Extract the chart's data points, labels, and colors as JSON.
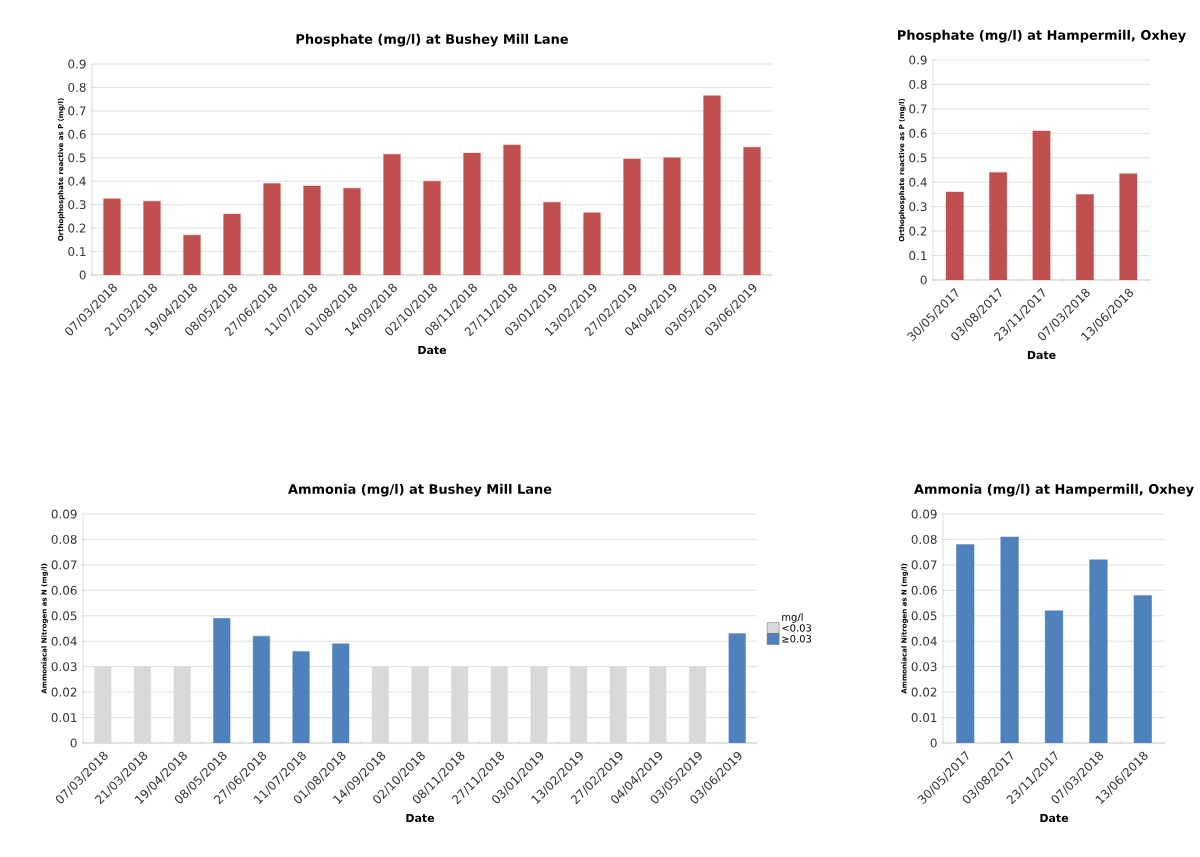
{
  "chart_data": [
    {
      "type": "bar",
      "title": "Phosphate (mg/l) at Bushey Mill Lane",
      "xlabel": "Date",
      "ylabel": "Orthophosphate reactive as P (mg/l)",
      "categories": [
        "07/03/2018",
        "21/03/2018",
        "19/04/2018",
        "08/05/2018",
        "27/06/2018",
        "11/07/2018",
        "01/08/2018",
        "14/09/2018",
        "02/10/2018",
        "08/11/2018",
        "27/11/2018",
        "03/01/2019",
        "13/02/2019",
        "27/02/2019",
        "04/04/2019",
        "03/05/2019",
        "03/06/2019"
      ],
      "series": [
        {
          "color": "#c0504d",
          "values": [
            0.325,
            0.315,
            0.17,
            0.26,
            0.39,
            0.38,
            0.37,
            0.515,
            0.4,
            0.52,
            0.555,
            0.31,
            0.265,
            0.495,
            0.5,
            0.765,
            0.545
          ]
        }
      ],
      "ylim": [
        0,
        0.9
      ],
      "yticks": [
        0,
        0.1,
        0.2,
        0.3,
        0.4,
        0.5,
        0.6,
        0.7,
        0.8,
        0.9
      ],
      "grid": "y"
    },
    {
      "type": "bar",
      "title": "Phosphate (mg/l) at Hampermill, Oxhey",
      "xlabel": "Date",
      "ylabel": "Orthophosphate reactive as P (mg/l)",
      "categories": [
        "30/05/2017",
        "03/08/2017",
        "23/11/2017",
        "07/03/2018",
        "13/06/2018"
      ],
      "series": [
        {
          "color": "#c0504d",
          "values": [
            0.36,
            0.44,
            0.61,
            0.35,
            0.435
          ]
        }
      ],
      "ylim": [
        0,
        0.9
      ],
      "yticks": [
        0,
        0.1,
        0.2,
        0.3,
        0.4,
        0.5,
        0.6,
        0.7,
        0.8,
        0.9
      ],
      "grid": "y"
    },
    {
      "type": "bar",
      "title": "Ammonia (mg/l) at Bushey Mill Lane",
      "xlabel": "Date",
      "ylabel": "Ammoniacal Nitrogen as N (mg/l)",
      "categories": [
        "07/03/2018",
        "21/03/2018",
        "19/04/2018",
        "08/05/2018",
        "27/06/2018",
        "11/07/2018",
        "01/08/2018",
        "14/09/2018",
        "02/10/2018",
        "08/11/2018",
        "27/11/2018",
        "03/01/2019",
        "13/02/2019",
        "27/02/2019",
        "04/04/2019",
        "03/05/2019",
        "03/06/2019"
      ],
      "series": [
        {
          "name": "<0.03",
          "color": "#d9d9d9",
          "values": [
            0.03,
            0.03,
            0.03,
            null,
            null,
            null,
            null,
            0.03,
            0.03,
            0.03,
            0.03,
            0.03,
            0.03,
            0.03,
            0.03,
            0.03,
            null
          ]
        },
        {
          "name": "≥0.03",
          "color": "#4f81bd",
          "values": [
            null,
            null,
            null,
            0.049,
            0.042,
            0.036,
            0.039,
            null,
            null,
            null,
            null,
            null,
            null,
            null,
            null,
            null,
            0.043
          ]
        }
      ],
      "ylim": [
        0,
        0.09
      ],
      "yticks": [
        0,
        0.01,
        0.02,
        0.03,
        0.04,
        0.05,
        0.06,
        0.07,
        0.08,
        0.09
      ],
      "grid": "y",
      "legend": "right",
      "legend_title": "mg/l"
    },
    {
      "type": "bar",
      "title": "Ammonia (mg/l) at Hampermill, Oxhey",
      "xlabel": "Date",
      "ylabel": "Ammoniacal Nitrogen as N (mg/l)",
      "categories": [
        "30/05/2017",
        "03/08/2017",
        "23/11/2017",
        "07/03/2018",
        "13/06/2018"
      ],
      "series": [
        {
          "color": "#4f81bd",
          "values": [
            0.078,
            0.081,
            0.052,
            0.072,
            0.058
          ]
        }
      ],
      "ylim": [
        0,
        0.09
      ],
      "yticks": [
        0,
        0.01,
        0.02,
        0.03,
        0.04,
        0.05,
        0.06,
        0.07,
        0.08,
        0.09
      ],
      "grid": "y"
    }
  ]
}
